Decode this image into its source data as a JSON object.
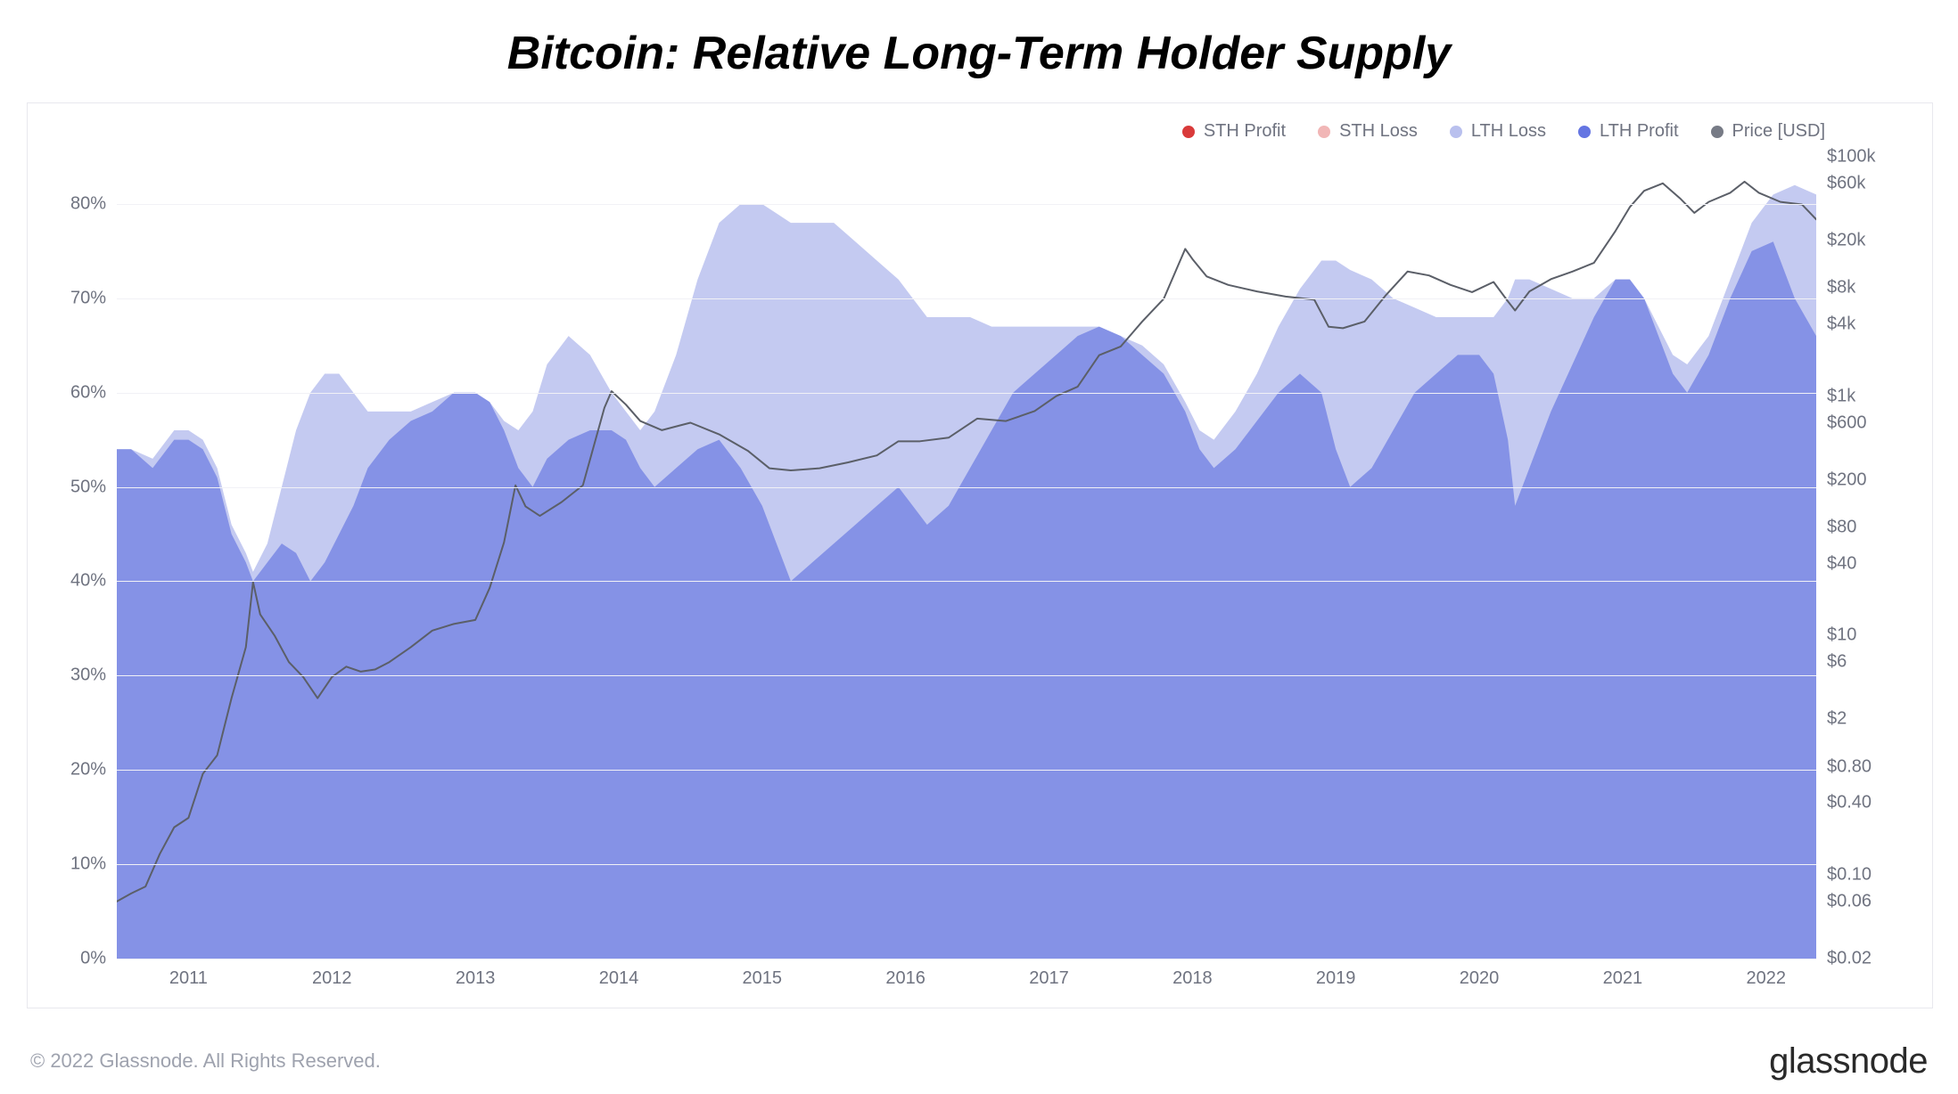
{
  "title": "Bitcoin: Relative Long-Term Holder Supply",
  "footer_copyright": "© 2022 Glassnode. All Rights Reserved.",
  "brand": "glassnode",
  "watermark": "glassnode",
  "chart": {
    "type": "stacked-area-with-line",
    "background_color": "#ffffff",
    "grid_color": "#f1f1f6",
    "axis_text_color": "#6f7380",
    "title_fontsize": 52,
    "title_color": "#000000",
    "axis_fontsize": 20,
    "legend_fontsize": 20,
    "legend_items": [
      {
        "label": "STH Profit",
        "color": "#d93a3a",
        "opacity": 0.9
      },
      {
        "label": "STH Loss",
        "color": "#f1b6b6",
        "opacity": 0.9
      },
      {
        "label": "LTH Loss",
        "color": "#b9c0ee",
        "opacity": 1.0
      },
      {
        "label": "LTH Profit",
        "color": "#6475e2",
        "opacity": 1.0
      },
      {
        "label": "Price [USD]",
        "color": "#777b86",
        "opacity": 1.0
      }
    ],
    "colors": {
      "lth_profit_fill": "#8592e6",
      "lth_loss_fill": "#c4caf1",
      "price_line": "#5b5f68",
      "price_line_width": 2
    },
    "x": {
      "start_year": 2010.5,
      "end_year": 2022.35,
      "tick_years": [
        2011,
        2012,
        2013,
        2014,
        2015,
        2016,
        2017,
        2018,
        2019,
        2020,
        2021,
        2022
      ]
    },
    "y_left": {
      "min": 0,
      "max": 85,
      "ticks": [
        {
          "v": 0,
          "label": "0%"
        },
        {
          "v": 10,
          "label": "10%"
        },
        {
          "v": 20,
          "label": "20%"
        },
        {
          "v": 30,
          "label": "30%"
        },
        {
          "v": 40,
          "label": "40%"
        },
        {
          "v": 50,
          "label": "50%"
        },
        {
          "v": 60,
          "label": "60%"
        },
        {
          "v": 70,
          "label": "70%"
        },
        {
          "v": 80,
          "label": "80%"
        }
      ]
    },
    "y_right": {
      "scale": "log",
      "min": 0.02,
      "max": 100000,
      "ticks": [
        {
          "v": 0.02,
          "label": "$0.02"
        },
        {
          "v": 0.06,
          "label": "$0.06"
        },
        {
          "v": 0.1,
          "label": "$0.10"
        },
        {
          "v": 0.4,
          "label": "$0.40"
        },
        {
          "v": 0.8,
          "label": "$0.80"
        },
        {
          "v": 2,
          "label": "$2"
        },
        {
          "v": 6,
          "label": "$6"
        },
        {
          "v": 10,
          "label": "$10"
        },
        {
          "v": 40,
          "label": "$40"
        },
        {
          "v": 80,
          "label": "$80"
        },
        {
          "v": 200,
          "label": "$200"
        },
        {
          "v": 600,
          "label": "$600"
        },
        {
          "v": 1000,
          "label": "$1k"
        },
        {
          "v": 4000,
          "label": "$4k"
        },
        {
          "v": 8000,
          "label": "$8k"
        },
        {
          "v": 20000,
          "label": "$20k"
        },
        {
          "v": 60000,
          "label": "$60k"
        },
        {
          "v": 100000,
          "label": "$100k"
        }
      ]
    },
    "series": {
      "lth_profit_pct": [
        [
          2010.5,
          54
        ],
        [
          2010.6,
          54
        ],
        [
          2010.75,
          52
        ],
        [
          2010.9,
          55
        ],
        [
          2011.0,
          55
        ],
        [
          2011.1,
          54
        ],
        [
          2011.2,
          51
        ],
        [
          2011.3,
          45
        ],
        [
          2011.4,
          42
        ],
        [
          2011.45,
          40
        ],
        [
          2011.55,
          42
        ],
        [
          2011.65,
          44
        ],
        [
          2011.75,
          43
        ],
        [
          2011.85,
          40
        ],
        [
          2011.95,
          42
        ],
        [
          2012.05,
          45
        ],
        [
          2012.15,
          48
        ],
        [
          2012.25,
          52
        ],
        [
          2012.4,
          55
        ],
        [
          2012.55,
          57
        ],
        [
          2012.7,
          58
        ],
        [
          2012.85,
          60
        ],
        [
          2013.0,
          60
        ],
        [
          2013.1,
          59
        ],
        [
          2013.2,
          56
        ],
        [
          2013.3,
          52
        ],
        [
          2013.4,
          50
        ],
        [
          2013.5,
          53
        ],
        [
          2013.65,
          55
        ],
        [
          2013.8,
          56
        ],
        [
          2013.95,
          56
        ],
        [
          2014.05,
          55
        ],
        [
          2014.15,
          52
        ],
        [
          2014.25,
          50
        ],
        [
          2014.4,
          52
        ],
        [
          2014.55,
          54
        ],
        [
          2014.7,
          55
        ],
        [
          2014.85,
          52
        ],
        [
          2015.0,
          48
        ],
        [
          2015.1,
          44
        ],
        [
          2015.2,
          40
        ],
        [
          2015.35,
          42
        ],
        [
          2015.5,
          44
        ],
        [
          2015.65,
          46
        ],
        [
          2015.8,
          48
        ],
        [
          2015.95,
          50
        ],
        [
          2016.05,
          48
        ],
        [
          2016.15,
          46
        ],
        [
          2016.3,
          48
        ],
        [
          2016.45,
          52
        ],
        [
          2016.6,
          56
        ],
        [
          2016.75,
          60
        ],
        [
          2016.9,
          62
        ],
        [
          2017.05,
          64
        ],
        [
          2017.2,
          66
        ],
        [
          2017.35,
          67
        ],
        [
          2017.5,
          66
        ],
        [
          2017.65,
          64
        ],
        [
          2017.8,
          62
        ],
        [
          2017.95,
          58
        ],
        [
          2018.05,
          54
        ],
        [
          2018.15,
          52
        ],
        [
          2018.3,
          54
        ],
        [
          2018.45,
          57
        ],
        [
          2018.6,
          60
        ],
        [
          2018.75,
          62
        ],
        [
          2018.9,
          60
        ],
        [
          2019.0,
          54
        ],
        [
          2019.1,
          50
        ],
        [
          2019.25,
          52
        ],
        [
          2019.4,
          56
        ],
        [
          2019.55,
          60
        ],
        [
          2019.7,
          62
        ],
        [
          2019.85,
          64
        ],
        [
          2020.0,
          64
        ],
        [
          2020.1,
          62
        ],
        [
          2020.2,
          55
        ],
        [
          2020.25,
          48
        ],
        [
          2020.35,
          52
        ],
        [
          2020.5,
          58
        ],
        [
          2020.65,
          63
        ],
        [
          2020.8,
          68
        ],
        [
          2020.95,
          72
        ],
        [
          2021.05,
          72
        ],
        [
          2021.15,
          70
        ],
        [
          2021.25,
          66
        ],
        [
          2021.35,
          62
        ],
        [
          2021.45,
          60
        ],
        [
          2021.6,
          64
        ],
        [
          2021.75,
          70
        ],
        [
          2021.9,
          75
        ],
        [
          2022.05,
          76
        ],
        [
          2022.2,
          70
        ],
        [
          2022.35,
          66
        ]
      ],
      "lth_total_pct": [
        [
          2010.5,
          54
        ],
        [
          2010.6,
          54
        ],
        [
          2010.75,
          53
        ],
        [
          2010.9,
          56
        ],
        [
          2011.0,
          56
        ],
        [
          2011.1,
          55
        ],
        [
          2011.2,
          52
        ],
        [
          2011.3,
          46
        ],
        [
          2011.4,
          43
        ],
        [
          2011.45,
          41
        ],
        [
          2011.55,
          44
        ],
        [
          2011.65,
          50
        ],
        [
          2011.75,
          56
        ],
        [
          2011.85,
          60
        ],
        [
          2011.95,
          62
        ],
        [
          2012.05,
          62
        ],
        [
          2012.15,
          60
        ],
        [
          2012.25,
          58
        ],
        [
          2012.4,
          58
        ],
        [
          2012.55,
          58
        ],
        [
          2012.7,
          59
        ],
        [
          2012.85,
          60
        ],
        [
          2013.0,
          60
        ],
        [
          2013.1,
          59
        ],
        [
          2013.2,
          57
        ],
        [
          2013.3,
          56
        ],
        [
          2013.4,
          58
        ],
        [
          2013.5,
          63
        ],
        [
          2013.65,
          66
        ],
        [
          2013.8,
          64
        ],
        [
          2013.95,
          60
        ],
        [
          2014.05,
          58
        ],
        [
          2014.15,
          56
        ],
        [
          2014.25,
          58
        ],
        [
          2014.4,
          64
        ],
        [
          2014.55,
          72
        ],
        [
          2014.7,
          78
        ],
        [
          2014.85,
          80
        ],
        [
          2015.0,
          80
        ],
        [
          2015.1,
          79
        ],
        [
          2015.2,
          78
        ],
        [
          2015.35,
          78
        ],
        [
          2015.5,
          78
        ],
        [
          2015.65,
          76
        ],
        [
          2015.8,
          74
        ],
        [
          2015.95,
          72
        ],
        [
          2016.05,
          70
        ],
        [
          2016.15,
          68
        ],
        [
          2016.3,
          68
        ],
        [
          2016.45,
          68
        ],
        [
          2016.6,
          67
        ],
        [
          2016.75,
          67
        ],
        [
          2016.9,
          67
        ],
        [
          2017.05,
          67
        ],
        [
          2017.2,
          67
        ],
        [
          2017.35,
          67
        ],
        [
          2017.5,
          66
        ],
        [
          2017.65,
          65
        ],
        [
          2017.8,
          63
        ],
        [
          2017.95,
          59
        ],
        [
          2018.05,
          56
        ],
        [
          2018.15,
          55
        ],
        [
          2018.3,
          58
        ],
        [
          2018.45,
          62
        ],
        [
          2018.6,
          67
        ],
        [
          2018.75,
          71
        ],
        [
          2018.9,
          74
        ],
        [
          2019.0,
          74
        ],
        [
          2019.1,
          73
        ],
        [
          2019.25,
          72
        ],
        [
          2019.4,
          70
        ],
        [
          2019.55,
          69
        ],
        [
          2019.7,
          68
        ],
        [
          2019.85,
          68
        ],
        [
          2020.0,
          68
        ],
        [
          2020.1,
          68
        ],
        [
          2020.2,
          70
        ],
        [
          2020.25,
          72
        ],
        [
          2020.35,
          72
        ],
        [
          2020.5,
          71
        ],
        [
          2020.65,
          70
        ],
        [
          2020.8,
          70
        ],
        [
          2020.95,
          72
        ],
        [
          2021.05,
          72
        ],
        [
          2021.15,
          70
        ],
        [
          2021.25,
          67
        ],
        [
          2021.35,
          64
        ],
        [
          2021.45,
          63
        ],
        [
          2021.6,
          66
        ],
        [
          2021.75,
          72
        ],
        [
          2021.9,
          78
        ],
        [
          2022.05,
          81
        ],
        [
          2022.2,
          82
        ],
        [
          2022.35,
          81
        ]
      ],
      "price_usd": [
        [
          2010.5,
          0.06
        ],
        [
          2010.6,
          0.07
        ],
        [
          2010.7,
          0.08
        ],
        [
          2010.8,
          0.15
        ],
        [
          2010.9,
          0.25
        ],
        [
          2011.0,
          0.3
        ],
        [
          2011.1,
          0.7
        ],
        [
          2011.2,
          1.0
        ],
        [
          2011.3,
          3.0
        ],
        [
          2011.4,
          8.0
        ],
        [
          2011.45,
          28.0
        ],
        [
          2011.5,
          15.0
        ],
        [
          2011.6,
          10.0
        ],
        [
          2011.7,
          6.0
        ],
        [
          2011.8,
          4.5
        ],
        [
          2011.9,
          3.0
        ],
        [
          2012.0,
          4.5
        ],
        [
          2012.1,
          5.5
        ],
        [
          2012.2,
          5.0
        ],
        [
          2012.3,
          5.2
        ],
        [
          2012.4,
          6.0
        ],
        [
          2012.55,
          8.0
        ],
        [
          2012.7,
          11.0
        ],
        [
          2012.85,
          12.5
        ],
        [
          2013.0,
          13.5
        ],
        [
          2013.1,
          25.0
        ],
        [
          2013.2,
          60.0
        ],
        [
          2013.28,
          180
        ],
        [
          2013.35,
          120
        ],
        [
          2013.45,
          100
        ],
        [
          2013.6,
          130
        ],
        [
          2013.75,
          180
        ],
        [
          2013.9,
          800
        ],
        [
          2013.95,
          1100
        ],
        [
          2014.05,
          850
        ],
        [
          2014.15,
          620
        ],
        [
          2014.3,
          520
        ],
        [
          2014.5,
          600
        ],
        [
          2014.7,
          480
        ],
        [
          2014.9,
          350
        ],
        [
          2015.05,
          250
        ],
        [
          2015.2,
          240
        ],
        [
          2015.4,
          250
        ],
        [
          2015.6,
          280
        ],
        [
          2015.8,
          320
        ],
        [
          2015.95,
          420
        ],
        [
          2016.1,
          420
        ],
        [
          2016.3,
          450
        ],
        [
          2016.5,
          650
        ],
        [
          2016.7,
          620
        ],
        [
          2016.9,
          750
        ],
        [
          2017.05,
          1000
        ],
        [
          2017.2,
          1200
        ],
        [
          2017.35,
          2200
        ],
        [
          2017.5,
          2600
        ],
        [
          2017.65,
          4200
        ],
        [
          2017.8,
          6500
        ],
        [
          2017.95,
          17000
        ],
        [
          2018.0,
          14000
        ],
        [
          2018.1,
          10000
        ],
        [
          2018.25,
          8500
        ],
        [
          2018.45,
          7500
        ],
        [
          2018.65,
          6800
        ],
        [
          2018.85,
          6400
        ],
        [
          2018.95,
          3800
        ],
        [
          2019.05,
          3700
        ],
        [
          2019.2,
          4200
        ],
        [
          2019.35,
          7000
        ],
        [
          2019.5,
          11000
        ],
        [
          2019.65,
          10200
        ],
        [
          2019.8,
          8500
        ],
        [
          2019.95,
          7400
        ],
        [
          2020.1,
          9000
        ],
        [
          2020.2,
          6200
        ],
        [
          2020.25,
          5200
        ],
        [
          2020.35,
          7500
        ],
        [
          2020.5,
          9500
        ],
        [
          2020.65,
          11000
        ],
        [
          2020.8,
          13000
        ],
        [
          2020.95,
          24000
        ],
        [
          2021.05,
          38000
        ],
        [
          2021.15,
          52000
        ],
        [
          2021.28,
          60000
        ],
        [
          2021.4,
          45000
        ],
        [
          2021.5,
          34000
        ],
        [
          2021.6,
          42000
        ],
        [
          2021.75,
          50000
        ],
        [
          2021.85,
          62000
        ],
        [
          2021.95,
          50000
        ],
        [
          2022.1,
          42000
        ],
        [
          2022.25,
          40000
        ],
        [
          2022.35,
          30000
        ]
      ]
    }
  }
}
